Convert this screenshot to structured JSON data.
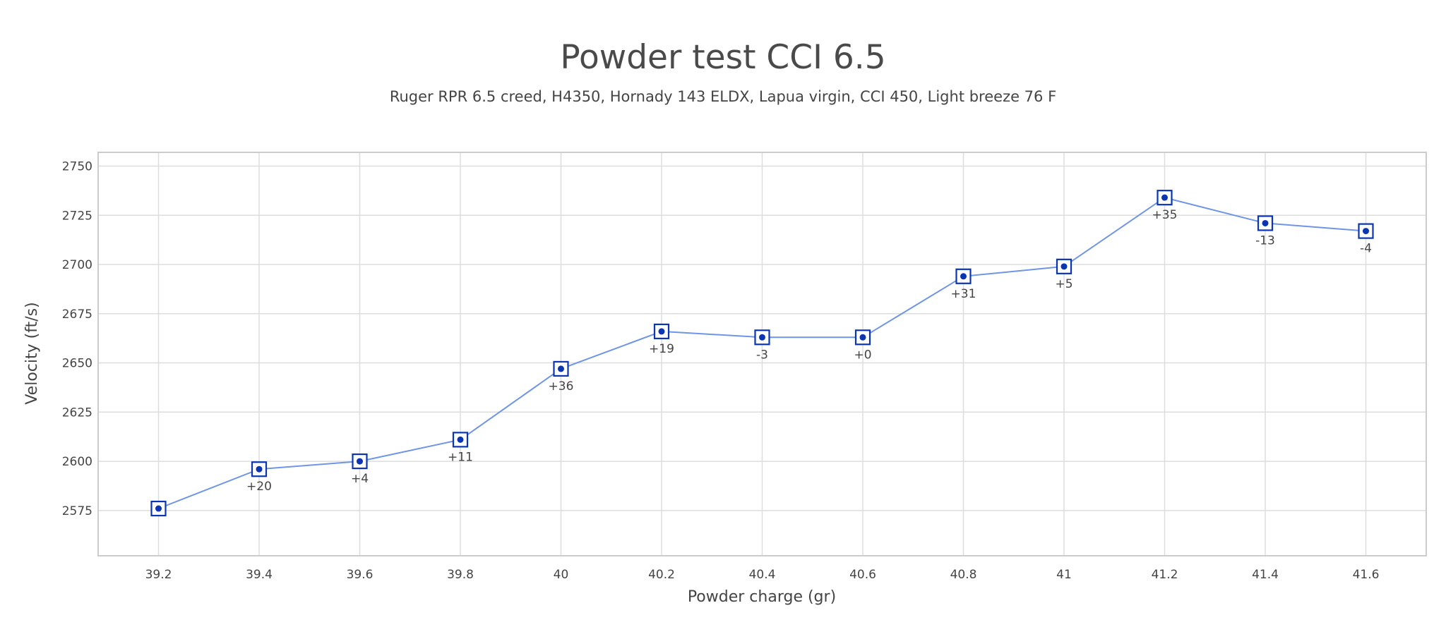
{
  "chart_data": {
    "type": "line",
    "title": "Powder test CCI 6.5",
    "subtitle": "Ruger RPR 6.5 creed, H4350, Hornady 143 ELDX, Lapua virgin, CCI 450, Light breeze 76 F",
    "xlabel": "Powder charge (gr)",
    "ylabel": "Velocity (ft/s)",
    "x_ticks": [
      "39.2",
      "39.4",
      "39.6",
      "39.8",
      "40",
      "40.2",
      "40.4",
      "40.6",
      "40.8",
      "41",
      "41.2",
      "41.4",
      "41.6"
    ],
    "x": [
      39.2,
      39.4,
      39.6,
      39.8,
      40.0,
      40.2,
      40.4,
      40.6,
      40.8,
      41.0,
      41.2,
      41.4,
      41.6
    ],
    "y": [
      2576,
      2596,
      2600,
      2611,
      2647,
      2666,
      2663,
      2663,
      2694,
      2699,
      2734,
      2721,
      2717
    ],
    "point_labels": [
      "",
      "+20",
      "+4",
      "+11",
      "+36",
      "+19",
      "-3",
      "+0",
      "+31",
      "+5",
      "+35",
      "-13",
      "-4"
    ],
    "y_ticks": [
      2575,
      2600,
      2625,
      2650,
      2675,
      2700,
      2725,
      2750
    ],
    "ylim": [
      2552,
      2757
    ],
    "xlim": [
      39.08,
      41.72
    ],
    "grid": true,
    "colors": {
      "line": "#6f95e6",
      "marker": "#0b35b3",
      "grid": "#dddddd",
      "frame": "#cccccc"
    }
  }
}
